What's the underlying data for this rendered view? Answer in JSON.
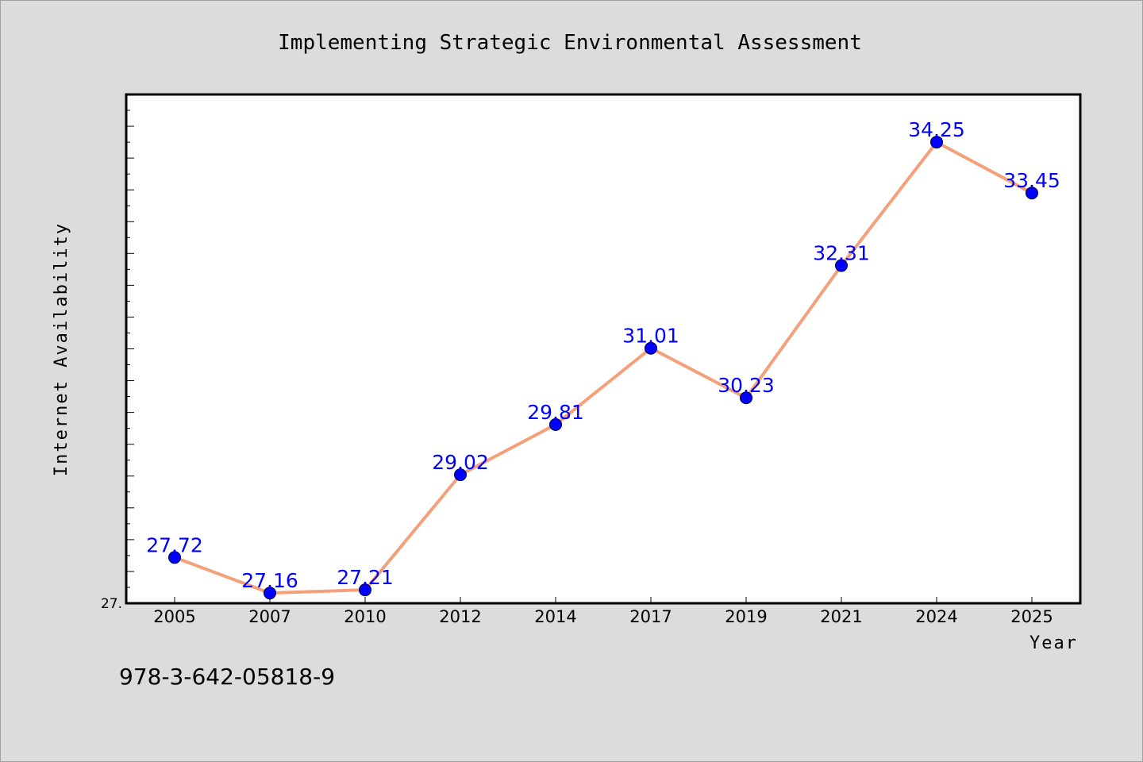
{
  "chart_data": {
    "type": "line",
    "title": "Implementing Strategic Environmental Assessment",
    "xlabel": "Year",
    "ylabel": "Internet Availability",
    "categories": [
      "2005",
      "2007",
      "2010",
      "2012",
      "2014",
      "2017",
      "2019",
      "2021",
      "2024",
      "2025"
    ],
    "series": [
      {
        "values": [
          27.72,
          27.16,
          27.21,
          29.02,
          29.81,
          31.01,
          30.23,
          32.31,
          34.25,
          33.45
        ],
        "labels": [
          "27.72",
          "27.16",
          "27.21",
          "29.02",
          "29.81",
          "31.01",
          "30.23",
          "32.31",
          "34.25",
          "33.45"
        ]
      }
    ],
    "ylim": [
      27.0,
      35.0
    ],
    "y_tick_labels": [
      "27."
    ],
    "grid": false,
    "legend": "none",
    "colors": {
      "line": "#f4a07a",
      "marker": "#0000ff",
      "data_label": "#0000ff",
      "plot_background": "#ffffff",
      "page_background": "#dcdcdc"
    }
  },
  "footer": {
    "isbn": "978-3-642-05818-9"
  }
}
